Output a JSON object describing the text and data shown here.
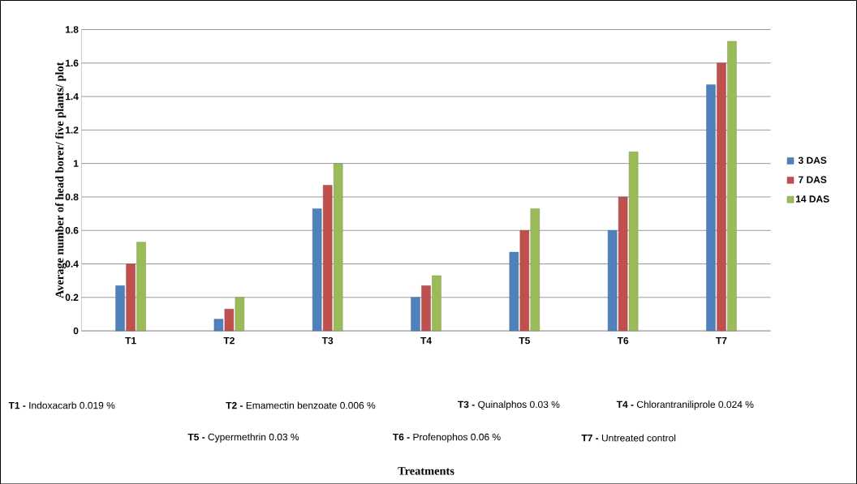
{
  "chart_data": {
    "type": "bar",
    "ylabel": "Average number of head borer/ five plants/ plot",
    "categories": [
      "T1",
      "T2",
      "T3",
      "T4",
      "T5",
      "T6",
      "T7"
    ],
    "series": [
      {
        "name": "3 DAS",
        "color": "#4f81bd",
        "values": [
          0.27,
          0.07,
          0.73,
          0.2,
          0.47,
          0.6,
          1.47
        ]
      },
      {
        "name": "7 DAS",
        "color": "#c0504d",
        "values": [
          0.4,
          0.13,
          0.87,
          0.27,
          0.6,
          0.8,
          1.6
        ]
      },
      {
        "name": "14 DAS",
        "color": "#9bbb59",
        "values": [
          0.53,
          0.2,
          1.0,
          0.33,
          0.73,
          1.07,
          1.73
        ]
      }
    ],
    "ylim": [
      0,
      1.8
    ],
    "yticks": [
      0,
      0.2,
      0.4,
      0.6,
      0.8,
      1,
      1.2,
      1.4,
      1.6,
      1.8
    ],
    "grid": "y",
    "legend": "right",
    "annotations": [
      "**T1 -** Indoxacarb 0.019  %",
      "**T2 -** Emamectin benzoate 0.006 %",
      "**T3 -** Quinalphos 0.03 %",
      "**T4 -** Chlorantraniliprole  0.024 %",
      "**T5 -** Cypermethrin 0.03 %",
      "**T6 -** Profenophos  0.06 %",
      "**T7 -** Untreated control",
      "**Treatments**"
    ]
  }
}
